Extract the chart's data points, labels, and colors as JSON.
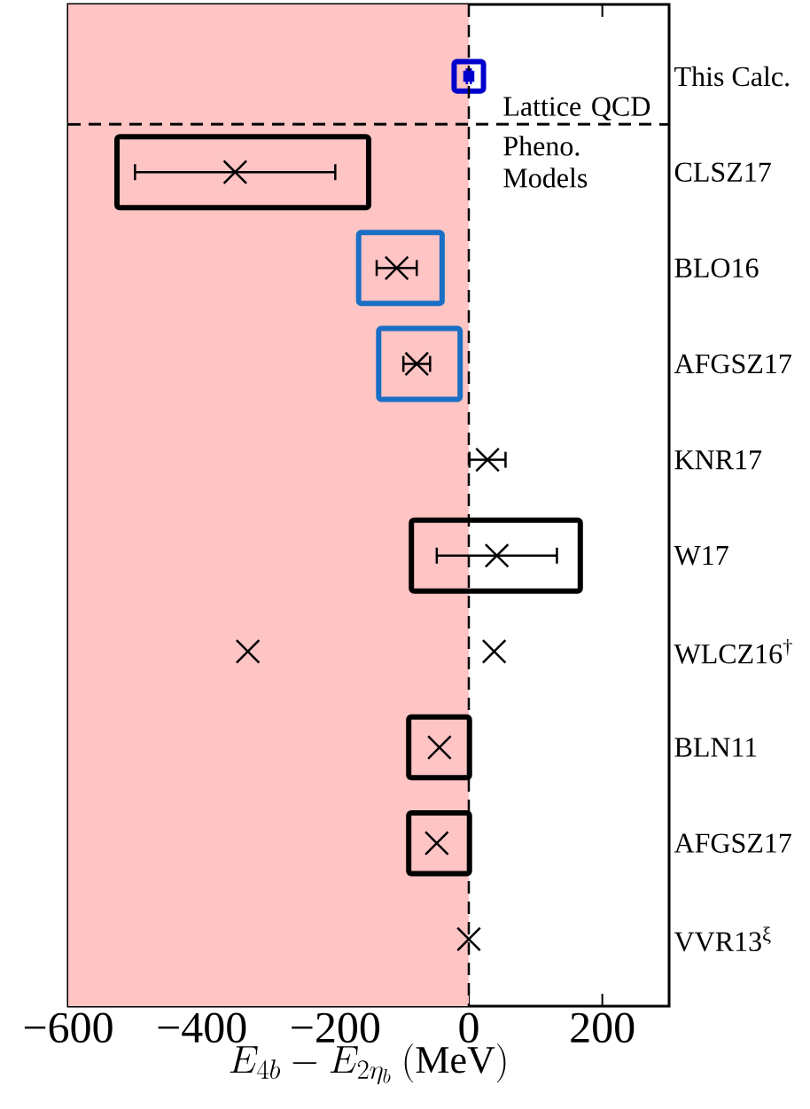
{
  "chart_data": {
    "type": "scatter",
    "orientation": "horizontal",
    "xlabel": "E_{4b}-E_{2\\eta_b}\\ (\\mathrm{MeV})",
    "categories": [
      "This Calc.",
      "CLSZ17",
      "BLO16",
      "AFGSZ17",
      "KNR17",
      "W17",
      "WLCZ16$^{†}$",
      "BLN11",
      "AFGSZ17",
      "VVR13$^{ξ}$"
    ],
    "marker": "cross",
    "xlim": [
      -600,
      300
    ],
    "xticks": [
      {
        "value": -600,
        "label": "−600"
      },
      {
        "value": -400,
        "label": "−400"
      },
      {
        "value": -200,
        "label": "−200"
      },
      {
        "value": 0,
        "label": "0"
      },
      {
        "value": 200,
        "label": "200"
      }
    ],
    "series": [
      {
        "type": "bar",
        "colors": [
          "#0000cc",
          "#000000",
          "#1a6fc4",
          "#1a6fc4",
          "#000000",
          "#000000",
          "#000000",
          "#000000",
          "#000000",
          "#000000"
        ],
        "base": [
          -22,
          -527,
          -165,
          -135,
          null,
          -86,
          null,
          -90,
          -90,
          null
        ],
        "values": [
          44,
          377,
          125,
          122,
          null,
          253,
          null,
          91,
          91,
          null
        ]
      },
      {
        "marker": "square",
        "color": "#0000cc",
        "values": [
          0,
          null,
          null,
          null,
          null,
          null,
          null,
          null,
          null,
          null
        ],
        "errors": [
          3,
          null,
          null,
          null,
          null,
          null,
          null,
          null,
          null,
          null
        ]
      },
      {
        "color": "#000000",
        "values": [
          null,
          -350,
          -108,
          -78,
          28,
          42,
          -331,
          -44,
          -48,
          0
        ],
        "errors": [
          null,
          150,
          30,
          20,
          27,
          90,
          null,
          null,
          null,
          null
        ]
      },
      {
        "color": "#000000",
        "values": [
          null,
          null,
          null,
          null,
          null,
          null,
          38,
          null,
          null,
          null
        ]
      }
    ],
    "bands": [
      {
        "axis": "x",
        "from": -600,
        "to": 0,
        "color": "#ffc4c4"
      }
    ],
    "ref_lines": [
      {
        "axis": "x",
        "value": 0,
        "color": "#000000",
        "line_style": "dashed"
      }
    ],
    "annotations": [
      "Lattice QCD",
      "Pheno. Models"
    ]
  }
}
